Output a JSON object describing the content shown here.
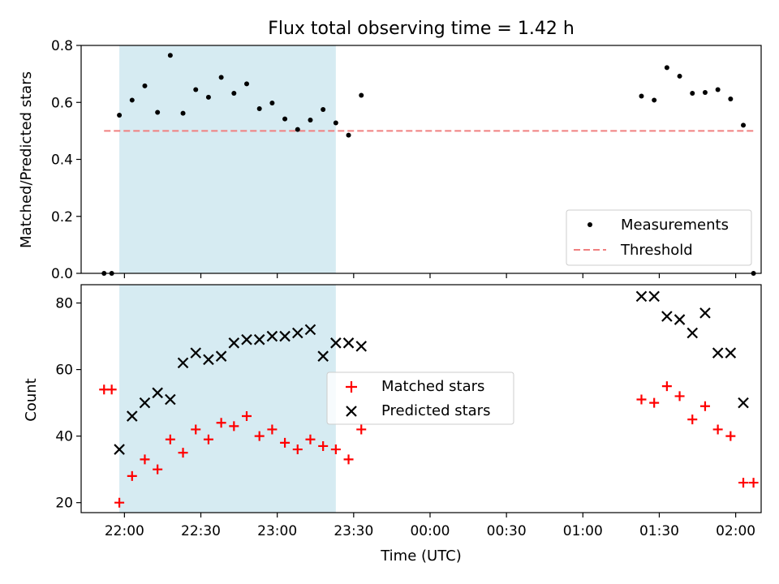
{
  "chart_data": [
    {
      "type": "scatter",
      "title": "Flux total observing time = 1.42 h",
      "xlabel": "",
      "ylabel": "Matched/Predicted stars",
      "ylim": [
        0.0,
        0.8
      ],
      "yticks": [
        "0.0",
        "0.2",
        "0.4",
        "0.6",
        "0.8"
      ],
      "xlim": [
        "21:43",
        "02:10"
      ],
      "shaded_region": {
        "start": "21:58",
        "end": "23:23",
        "color": "#add8e6"
      },
      "grid": false,
      "legend_position": "lower-right",
      "series": [
        {
          "name": "Measurements",
          "marker": "dot",
          "color": "#000000",
          "points": [
            [
              "21:52",
              0.0
            ],
            [
              "21:55",
              0.0
            ],
            [
              "21:58",
              0.555
            ],
            [
              "22:03",
              0.608
            ],
            [
              "22:08",
              0.658
            ],
            [
              "22:13",
              0.565
            ],
            [
              "22:18",
              0.765
            ],
            [
              "22:23",
              0.562
            ],
            [
              "22:28",
              0.645
            ],
            [
              "22:33",
              0.618
            ],
            [
              "22:38",
              0.688
            ],
            [
              "22:43",
              0.632
            ],
            [
              "22:48",
              0.665
            ],
            [
              "22:53",
              0.578
            ],
            [
              "22:58",
              0.598
            ],
            [
              "23:03",
              0.542
            ],
            [
              "23:08",
              0.505
            ],
            [
              "23:13",
              0.538
            ],
            [
              "23:18",
              0.575
            ],
            [
              "23:23",
              0.528
            ],
            [
              "23:28",
              0.485
            ],
            [
              "23:33",
              0.625
            ],
            [
              "01:23",
              0.622
            ],
            [
              "01:28",
              0.608
            ],
            [
              "01:33",
              0.722
            ],
            [
              "01:38",
              0.692
            ],
            [
              "01:43",
              0.632
            ],
            [
              "01:48",
              0.635
            ],
            [
              "01:53",
              0.645
            ],
            [
              "01:58",
              0.612
            ],
            [
              "02:03",
              0.52
            ],
            [
              "02:07",
              0.0
            ]
          ]
        },
        {
          "name": "Threshold",
          "marker": "dashed-line",
          "color": "#f08080",
          "points": [
            [
              "21:52",
              0.5
            ],
            [
              "02:07",
              0.5
            ]
          ]
        }
      ]
    },
    {
      "type": "scatter",
      "title": "",
      "xlabel": "Time (UTC)",
      "ylabel": "Count",
      "ylim": [
        17,
        85.5
      ],
      "yticks": [
        "20",
        "40",
        "60",
        "80"
      ],
      "xticks": [
        "22:00",
        "22:30",
        "23:00",
        "23:30",
        "00:00",
        "00:30",
        "01:00",
        "01:30",
        "02:00"
      ],
      "xlim": [
        "21:43",
        "02:10"
      ],
      "shaded_region": {
        "start": "21:58",
        "end": "23:23",
        "color": "#add8e6"
      },
      "grid": false,
      "legend_position": "center",
      "series": [
        {
          "name": "Matched stars",
          "marker": "plus",
          "color": "#ff0000",
          "points": [
            [
              "21:52",
              54
            ],
            [
              "21:55",
              54
            ],
            [
              "21:58",
              20
            ],
            [
              "22:03",
              28
            ],
            [
              "22:08",
              33
            ],
            [
              "22:13",
              30
            ],
            [
              "22:18",
              39
            ],
            [
              "22:23",
              35
            ],
            [
              "22:28",
              42
            ],
            [
              "22:33",
              39
            ],
            [
              "22:38",
              44
            ],
            [
              "22:43",
              43
            ],
            [
              "22:48",
              46
            ],
            [
              "22:53",
              40
            ],
            [
              "22:58",
              42
            ],
            [
              "23:03",
              38
            ],
            [
              "23:08",
              36
            ],
            [
              "23:13",
              39
            ],
            [
              "23:18",
              37
            ],
            [
              "23:23",
              36
            ],
            [
              "23:28",
              33
            ],
            [
              "23:33",
              42
            ],
            [
              "01:23",
              51
            ],
            [
              "01:28",
              50
            ],
            [
              "01:33",
              55
            ],
            [
              "01:38",
              52
            ],
            [
              "01:43",
              45
            ],
            [
              "01:48",
              49
            ],
            [
              "01:53",
              42
            ],
            [
              "01:58",
              40
            ],
            [
              "02:03",
              26
            ],
            [
              "02:07",
              26
            ]
          ]
        },
        {
          "name": "Predicted stars",
          "marker": "x",
          "color": "#000000",
          "points": [
            [
              "21:58",
              36
            ],
            [
              "22:03",
              46
            ],
            [
              "22:08",
              50
            ],
            [
              "22:13",
              53
            ],
            [
              "22:18",
              51
            ],
            [
              "22:23",
              62
            ],
            [
              "22:28",
              65
            ],
            [
              "22:33",
              63
            ],
            [
              "22:38",
              64
            ],
            [
              "22:43",
              68
            ],
            [
              "22:48",
              69
            ],
            [
              "22:53",
              69
            ],
            [
              "22:58",
              70
            ],
            [
              "23:03",
              70
            ],
            [
              "23:08",
              71
            ],
            [
              "23:13",
              72
            ],
            [
              "23:18",
              64
            ],
            [
              "23:23",
              68
            ],
            [
              "23:28",
              68
            ],
            [
              "23:33",
              67
            ],
            [
              "01:23",
              82
            ],
            [
              "01:28",
              82
            ],
            [
              "01:33",
              76
            ],
            [
              "01:38",
              75
            ],
            [
              "01:43",
              71
            ],
            [
              "01:48",
              77
            ],
            [
              "01:53",
              65
            ],
            [
              "01:58",
              65
            ],
            [
              "02:03",
              50
            ]
          ]
        }
      ]
    }
  ]
}
